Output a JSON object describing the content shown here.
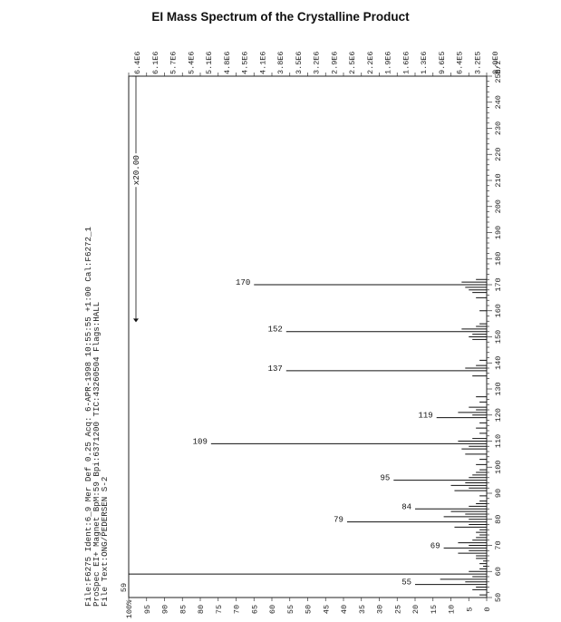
{
  "title": "EI Mass Spectrum of the Crystalline Product",
  "header_lines": [
    "File:F6275  Ident:6_9  Mer  Def 0.25  Acq: 6-APR-1998 10:55:55 +1:00  Cal:F6272_1",
    "ProSpec  EI+ Magnet  BpM:59  Bpi:6371200  TIC:43260504  Flags:HALL",
    "File Text:ONG/PEDERSEN  S-2"
  ],
  "base_marker": "59",
  "zoom_label": "x20.00",
  "chart_data": {
    "type": "bar",
    "orientation": "rotated-90-ccw",
    "xlabel": "m/z",
    "xlim": [
      50,
      250
    ],
    "x_ticks": [
      "50",
      "60",
      "70",
      "80",
      "90",
      "100",
      "110",
      "120",
      "130",
      "140",
      "150",
      "160",
      "170",
      "180",
      "190",
      "200",
      "210",
      "220",
      "230",
      "240",
      "250"
    ],
    "ylim": [
      0,
      100
    ],
    "left_ticks": [
      "0",
      "5",
      "10",
      "15",
      "20",
      "25",
      "30",
      "35",
      "40",
      "45",
      "50",
      "55",
      "60",
      "65",
      "70",
      "75",
      "80",
      "85",
      "90",
      "95",
      "100%"
    ],
    "right_ticks": [
      "0.0E0",
      "3.2E5",
      "6.4E5",
      "9.6E5",
      "1.3E6",
      "1.6E6",
      "1.9E6",
      "2.2E6",
      "2.5E6",
      "2.9E6",
      "3.2E6",
      "3.5E6",
      "3.8E6",
      "4.1E6",
      "4.5E6",
      "4.8E6",
      "5.1E6",
      "5.4E6",
      "5.7E6",
      "6.1E6",
      "6.4E6"
    ],
    "zoom_region": [
      157,
      250
    ],
    "zoom_factor": 20,
    "labeled_peaks": [
      {
        "mz": 55,
        "intensity": 20
      },
      {
        "mz": 59,
        "intensity": 100
      },
      {
        "mz": 69,
        "intensity": 12
      },
      {
        "mz": 79,
        "intensity": 39
      },
      {
        "mz": 84,
        "intensity": 20
      },
      {
        "mz": 95,
        "intensity": 26
      },
      {
        "mz": 109,
        "intensity": 77
      },
      {
        "mz": 119,
        "intensity": 14
      },
      {
        "mz": 137,
        "intensity": 56
      },
      {
        "mz": 152,
        "intensity": 56
      },
      {
        "mz": 170,
        "intensity": 65
      }
    ],
    "minor_peaks": [
      {
        "mz": 51,
        "intensity": 2
      },
      {
        "mz": 53,
        "intensity": 4
      },
      {
        "mz": 54,
        "intensity": 3
      },
      {
        "mz": 56,
        "intensity": 6
      },
      {
        "mz": 57,
        "intensity": 13
      },
      {
        "mz": 58,
        "intensity": 4
      },
      {
        "mz": 60,
        "intensity": 5
      },
      {
        "mz": 61,
        "intensity": 2
      },
      {
        "mz": 62,
        "intensity": 1
      },
      {
        "mz": 63,
        "intensity": 2
      },
      {
        "mz": 64,
        "intensity": 1
      },
      {
        "mz": 65,
        "intensity": 3
      },
      {
        "mz": 66,
        "intensity": 3
      },
      {
        "mz": 67,
        "intensity": 8
      },
      {
        "mz": 68,
        "intensity": 5
      },
      {
        "mz": 70,
        "intensity": 5
      },
      {
        "mz": 71,
        "intensity": 8
      },
      {
        "mz": 72,
        "intensity": 4
      },
      {
        "mz": 73,
        "intensity": 3
      },
      {
        "mz": 74,
        "intensity": 2
      },
      {
        "mz": 75,
        "intensity": 3
      },
      {
        "mz": 76,
        "intensity": 2
      },
      {
        "mz": 77,
        "intensity": 9
      },
      {
        "mz": 78,
        "intensity": 5
      },
      {
        "mz": 80,
        "intensity": 5
      },
      {
        "mz": 81,
        "intensity": 12
      },
      {
        "mz": 82,
        "intensity": 6
      },
      {
        "mz": 83,
        "intensity": 10
      },
      {
        "mz": 85,
        "intensity": 5
      },
      {
        "mz": 86,
        "intensity": 3
      },
      {
        "mz": 87,
        "intensity": 2
      },
      {
        "mz": 89,
        "intensity": 2
      },
      {
        "mz": 91,
        "intensity": 9
      },
      {
        "mz": 92,
        "intensity": 5
      },
      {
        "mz": 93,
        "intensity": 10
      },
      {
        "mz": 94,
        "intensity": 6
      },
      {
        "mz": 96,
        "intensity": 5
      },
      {
        "mz": 97,
        "intensity": 4
      },
      {
        "mz": 98,
        "intensity": 3
      },
      {
        "mz": 99,
        "intensity": 2
      },
      {
        "mz": 101,
        "intensity": 3
      },
      {
        "mz": 103,
        "intensity": 2
      },
      {
        "mz": 105,
        "intensity": 6
      },
      {
        "mz": 107,
        "intensity": 7
      },
      {
        "mz": 108,
        "intensity": 5
      },
      {
        "mz": 110,
        "intensity": 8
      },
      {
        "mz": 111,
        "intensity": 4
      },
      {
        "mz": 113,
        "intensity": 2
      },
      {
        "mz": 115,
        "intensity": 3
      },
      {
        "mz": 117,
        "intensity": 2
      },
      {
        "mz": 120,
        "intensity": 4
      },
      {
        "mz": 121,
        "intensity": 8
      },
      {
        "mz": 122,
        "intensity": 3
      },
      {
        "mz": 123,
        "intensity": 5
      },
      {
        "mz": 125,
        "intensity": 2
      },
      {
        "mz": 127,
        "intensity": 3
      },
      {
        "mz": 135,
        "intensity": 4
      },
      {
        "mz": 138,
        "intensity": 6
      },
      {
        "mz": 139,
        "intensity": 3
      },
      {
        "mz": 141,
        "intensity": 2
      },
      {
        "mz": 149,
        "intensity": 4
      },
      {
        "mz": 150,
        "intensity": 5
      },
      {
        "mz": 151,
        "intensity": 4
      },
      {
        "mz": 153,
        "intensity": 7
      },
      {
        "mz": 154,
        "intensity": 3
      },
      {
        "mz": 155,
        "intensity": 2
      },
      {
        "mz": 160,
        "intensity": 2
      },
      {
        "mz": 165,
        "intensity": 3
      },
      {
        "mz": 167,
        "intensity": 4
      },
      {
        "mz": 168,
        "intensity": 5
      },
      {
        "mz": 169,
        "intensity": 6
      },
      {
        "mz": 171,
        "intensity": 7
      },
      {
        "mz": 172,
        "intensity": 3
      }
    ]
  }
}
